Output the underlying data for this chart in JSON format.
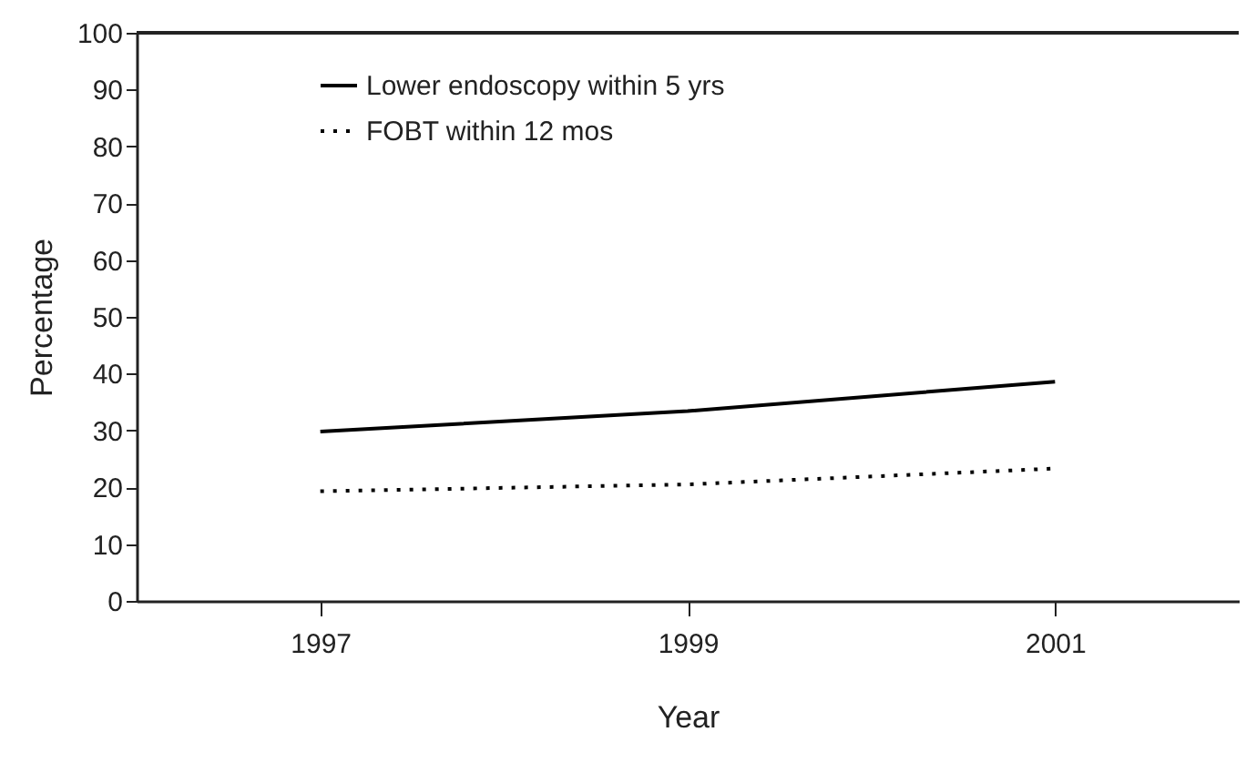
{
  "chart_data": {
    "type": "line",
    "xlabel": "Year",
    "ylabel": "Percentage",
    "x": [
      1997,
      1999,
      2001
    ],
    "series": [
      {
        "name": "Lower endoscopy within 5 yrs",
        "color": "#000000",
        "line_style": "solid",
        "values": [
          29.8,
          33.4,
          38.6
        ]
      },
      {
        "name": "FOBT within 12 mos",
        "color": "#000000",
        "line_style": "dotted",
        "values": [
          19.3,
          20.5,
          23.3
        ]
      }
    ],
    "xlim": [
      1996,
      2002
    ],
    "xticks": [
      1997,
      1999,
      2001
    ],
    "ylim": [
      0,
      100
    ],
    "yticks": [
      0,
      10,
      20,
      30,
      40,
      50,
      60,
      70,
      80,
      90,
      100
    ],
    "grid": false,
    "legend": "top left",
    "marker": "none"
  }
}
